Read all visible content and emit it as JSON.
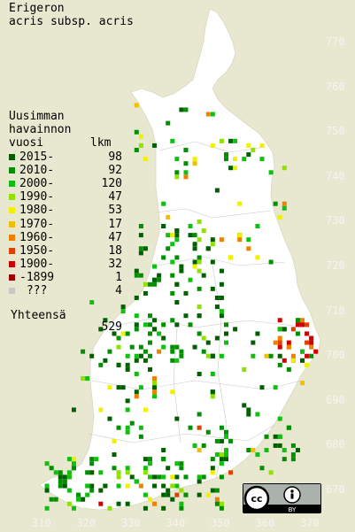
{
  "map": {
    "title_line1": "Erigeron",
    "title_line2": "acris subsp. acris",
    "legend_heading_line1": "Uusimman",
    "legend_heading_line2": "havainnon",
    "legend_heading_line3": "vuosi",
    "legend_heading_count": "lkm",
    "legend": [
      {
        "label": "2015-",
        "count": "98",
        "color": "#006000"
      },
      {
        "label": "2010-",
        "count": "92",
        "color": "#009000"
      },
      {
        "label": "2000-",
        "count": "120",
        "color": "#10c010"
      },
      {
        "label": "1990-",
        "count": "47",
        "color": "#90e000"
      },
      {
        "label": "1980-",
        "count": "53",
        "color": "#f0f000"
      },
      {
        "label": "1970-",
        "count": "17",
        "color": "#f0c000"
      },
      {
        "label": "1960-",
        "count": "47",
        "color": "#f08000"
      },
      {
        "label": "1950-",
        "count": "18",
        "color": "#e04000"
      },
      {
        "label": "1900-",
        "count": "32",
        "color": "#d00000"
      },
      {
        "label": "-1899",
        "count": "1",
        "color": "#a00000"
      },
      {
        "label": " ???",
        "count": "4",
        "color": "#c8c8c8"
      }
    ],
    "total_label": "Yhteensä",
    "total_count": "529",
    "y_ticks": [
      "770",
      "760",
      "750",
      "740",
      "730",
      "720",
      "710",
      "700",
      "690",
      "680",
      "670"
    ],
    "x_ticks": [
      "310",
      "320",
      "330",
      "340",
      "350",
      "360",
      "370"
    ],
    "license_text": "BY"
  }
}
